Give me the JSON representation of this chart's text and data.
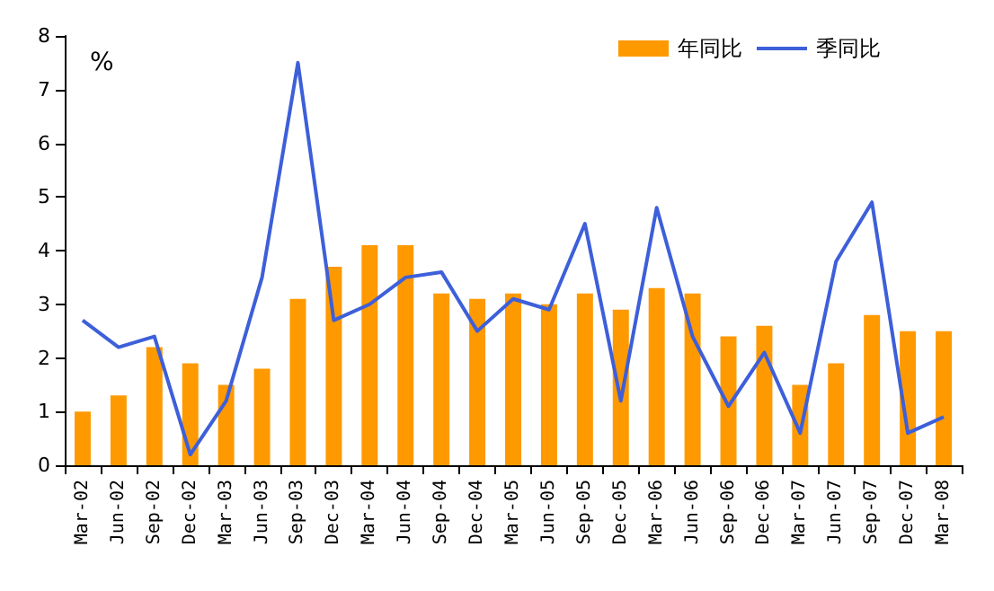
{
  "chart_data": {
    "type": "bar",
    "categories": [
      "Mar-02",
      "Jun-02",
      "Sep-02",
      "Dec-02",
      "Mar-03",
      "Jun-03",
      "Sep-03",
      "Dec-03",
      "Mar-04",
      "Jun-04",
      "Sep-04",
      "Dec-04",
      "Mar-05",
      "Jun-05",
      "Sep-05",
      "Dec-05",
      "Mar-06",
      "Jun-06",
      "Sep-06",
      "Dec-06",
      "Mar-07",
      "Jun-07",
      "Sep-07",
      "Dec-07",
      "Mar-08"
    ],
    "series": [
      {
        "name": "年同比",
        "color": "#ff9900",
        "values": [
          1.0,
          1.3,
          2.2,
          1.9,
          1.5,
          1.8,
          3.1,
          3.7,
          4.1,
          4.1,
          3.2,
          3.1,
          3.2,
          3.0,
          3.2,
          2.9,
          3.3,
          3.2,
          2.4,
          2.6,
          1.5,
          1.9,
          2.8,
          2.5,
          2.5
        ]
      },
      {
        "name": "季同比",
        "type": "line",
        "color": "#3d5fd9",
        "values": [
          2.7,
          2.2,
          2.4,
          0.2,
          1.2,
          3.5,
          7.5,
          2.7,
          3.0,
          3.5,
          3.6,
          2.5,
          3.1,
          2.9,
          4.5,
          1.2,
          4.8,
          2.4,
          1.1,
          2.1,
          0.6,
          3.8,
          4.9,
          0.6,
          0.9
        ]
      }
    ],
    "ylim": [
      0,
      8
    ],
    "yticks": [
      0,
      1,
      2,
      3,
      4,
      5,
      6,
      7,
      8
    ],
    "grid": false,
    "legend": "top right",
    "marker": "none",
    "line_style": "solid",
    "annotations": [
      "%"
    ]
  }
}
